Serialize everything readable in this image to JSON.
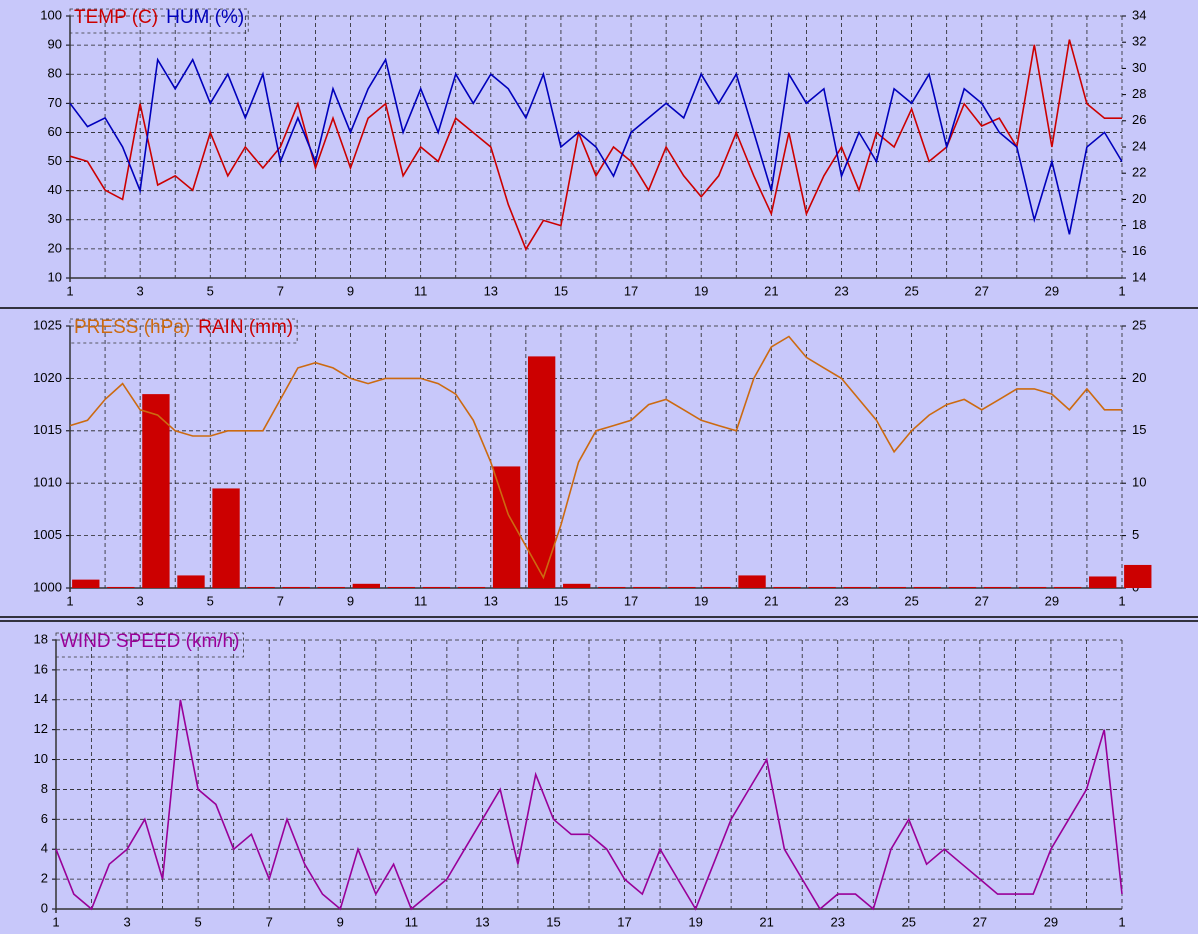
{
  "chart_data": [
    {
      "type": "line",
      "x": [
        1,
        1.5,
        2,
        2.5,
        3,
        3.5,
        4,
        4.5,
        5,
        5.5,
        6,
        6.5,
        7,
        7.5,
        8,
        8.5,
        9,
        9.5,
        10,
        10.5,
        11,
        11.5,
        12,
        12.5,
        13,
        13.5,
        14,
        14.5,
        15,
        15.5,
        16,
        16.5,
        17,
        17.5,
        18,
        18.5,
        19,
        19.5,
        20,
        20.5,
        21,
        21.5,
        22,
        22.5,
        23,
        23.5,
        24,
        24.5,
        25,
        25.5,
        26,
        26.5,
        27,
        27.5,
        28,
        28.5,
        29,
        29.5,
        30,
        30.5,
        31
      ],
      "series": [
        {
          "name": "TEMP (C)",
          "color": "#cc0000",
          "axis": "y2",
          "values": [
            23.3,
            22.9,
            20.7,
            20.0,
            27.3,
            21.1,
            21.8,
            20.7,
            25.1,
            21.8,
            24.0,
            22.4,
            24.0,
            27.3,
            22.4,
            26.2,
            22.4,
            26.2,
            27.3,
            21.8,
            24.0,
            22.9,
            26.2,
            25.1,
            24.0,
            19.6,
            16.2,
            18.4,
            18.0,
            25.1,
            21.8,
            24.0,
            22.9,
            20.7,
            24.0,
            21.8,
            20.2,
            21.8,
            25.1,
            21.8,
            18.9,
            25.1,
            18.9,
            21.8,
            24.0,
            20.7,
            25.1,
            24.0,
            26.9,
            22.9,
            24.0,
            27.3,
            25.6,
            26.2,
            24.0,
            31.8,
            24.0,
            32.2,
            27.3,
            26.2,
            26.2
          ]
        },
        {
          "name": "HUM (%)",
          "color": "#0000bb",
          "axis": "y",
          "values": [
            70,
            62,
            65,
            55,
            40,
            85,
            75,
            85,
            70,
            80,
            65,
            80,
            50,
            65,
            50,
            75,
            60,
            75,
            85,
            60,
            75,
            60,
            80,
            70,
            80,
            75,
            65,
            80,
            55,
            60,
            55,
            45,
            60,
            65,
            70,
            65,
            80,
            70,
            80,
            60,
            40,
            80,
            70,
            75,
            45,
            60,
            50,
            75,
            70,
            80,
            55,
            75,
            70,
            60,
            55,
            30,
            50,
            25,
            55,
            60,
            50
          ]
        }
      ],
      "xlim": [
        1,
        31
      ],
      "xticks": [
        1,
        3,
        5,
        7,
        9,
        11,
        13,
        15,
        17,
        19,
        21,
        23,
        25,
        27,
        29,
        {
          "value": 31,
          "label": "1"
        }
      ],
      "xminorticks": [
        2,
        4,
        6,
        8,
        10,
        12,
        14,
        16,
        18,
        20,
        22,
        24,
        26,
        28,
        30
      ],
      "ylim": [
        10,
        100
      ],
      "yticks": [
        10,
        20,
        30,
        40,
        50,
        60,
        70,
        80,
        90,
        100
      ],
      "y2lim": [
        14,
        34
      ],
      "y2ticks": [
        14,
        16,
        18,
        20,
        22,
        24,
        26,
        28,
        30,
        32,
        34
      ],
      "grid": true
    },
    {
      "type": "bar-line",
      "series": [
        {
          "name": "RAIN (mm)",
          "color": "#cc0000",
          "axis": "y2",
          "kind": "bar",
          "x": [
            1,
            2,
            3,
            4,
            5,
            6,
            7,
            8,
            9,
            10,
            11,
            12,
            13,
            14,
            15,
            16,
            17,
            18,
            19,
            20,
            21,
            22,
            23,
            24,
            25,
            26,
            27,
            28,
            29,
            30,
            31
          ],
          "values": [
            0.8,
            0.1,
            18.5,
            1.2,
            9.5,
            0.1,
            0.1,
            0.1,
            0.4,
            0.1,
            0.1,
            0.1,
            11.6,
            22.1,
            0.4,
            0.1,
            0.1,
            0.1,
            0.1,
            1.2,
            0.1,
            0.1,
            0.1,
            0.1,
            0.1,
            0.1,
            0.1,
            0.1,
            0.1,
            1.1,
            2.2
          ]
        },
        {
          "name": "PRESS (hPa)",
          "color": "#cc6a10",
          "axis": "y",
          "kind": "line",
          "x": [
            1,
            1.5,
            2,
            2.5,
            3,
            3.5,
            4,
            4.5,
            5,
            5.5,
            6,
            6.5,
            7,
            7.5,
            8,
            8.5,
            9,
            9.5,
            10,
            10.5,
            11,
            11.5,
            12,
            12.5,
            13,
            13.5,
            14,
            14.5,
            15,
            15.5,
            16,
            16.5,
            17,
            17.5,
            18,
            18.5,
            19,
            19.5,
            20,
            20.5,
            21,
            21.5,
            22,
            22.5,
            23,
            23.5,
            24,
            24.5,
            25,
            25.5,
            26,
            26.5,
            27,
            27.5,
            28,
            28.5,
            29,
            29.5,
            30,
            30.5,
            31
          ],
          "values": [
            1015.5,
            1016,
            1018,
            1019.5,
            1017,
            1016.5,
            1015,
            1014.5,
            1014.5,
            1015,
            1015,
            1015,
            1018,
            1021,
            1021.5,
            1021,
            1020,
            1019.5,
            1020,
            1020,
            1020,
            1019.5,
            1018.5,
            1016,
            1012,
            1007,
            1004,
            1001,
            1006,
            1012,
            1015,
            1015.5,
            1016,
            1017.5,
            1018,
            1017,
            1016,
            1015.5,
            1015,
            1020,
            1023,
            1024,
            1022,
            1021,
            1020,
            1018,
            1016,
            1013,
            1015,
            1016.5,
            1017.5,
            1018,
            1017,
            1018,
            1019,
            1019,
            1018.5,
            1017,
            1019,
            1017,
            1017
          ]
        }
      ],
      "legend_order": [
        "PRESS (hPa)",
        "RAIN (mm)"
      ],
      "xlim": [
        1,
        31
      ],
      "xticks": [
        1,
        3,
        5,
        7,
        9,
        11,
        13,
        15,
        17,
        19,
        21,
        23,
        25,
        27,
        29,
        {
          "value": 31,
          "label": "1"
        }
      ],
      "xminorticks": [
        2,
        4,
        6,
        8,
        10,
        12,
        14,
        16,
        18,
        20,
        22,
        24,
        26,
        28,
        30
      ],
      "ylim": [
        1000,
        1025
      ],
      "yticks": [
        1000,
        1005,
        1010,
        1015,
        1020,
        1025
      ],
      "y2lim": [
        0,
        25
      ],
      "y2ticks": [
        0,
        5,
        10,
        15,
        20,
        25
      ],
      "grid": true
    },
    {
      "type": "line",
      "x": [
        1,
        1.5,
        2,
        2.5,
        3,
        3.5,
        4,
        4.5,
        5,
        5.5,
        6,
        6.5,
        7,
        7.5,
        8,
        8.5,
        9,
        9.5,
        10,
        10.5,
        11,
        11.5,
        12,
        12.5,
        13,
        13.5,
        14,
        14.5,
        15,
        15.5,
        16,
        16.5,
        17,
        17.5,
        18,
        18.5,
        19,
        19.5,
        20,
        20.5,
        21,
        21.5,
        22,
        22.5,
        23,
        23.5,
        24,
        24.5,
        25,
        25.5,
        26,
        26.5,
        27,
        27.5,
        28,
        28.5,
        29,
        29.5,
        30,
        30.5,
        31
      ],
      "series": [
        {
          "name": "WIND SPEED (km/h)",
          "color": "#990099",
          "axis": "y",
          "values": [
            4,
            1,
            0,
            3,
            4,
            6,
            2,
            14,
            8,
            7,
            4,
            5,
            2,
            6,
            3,
            1,
            0,
            4,
            1,
            3,
            0,
            1,
            2,
            4,
            6,
            8,
            3,
            9,
            6,
            5,
            5,
            4,
            2,
            1,
            4,
            2,
            0,
            3,
            6,
            8,
            10,
            4,
            2,
            0,
            1,
            1,
            0,
            4,
            6,
            3,
            4,
            3,
            2,
            1,
            1,
            1,
            4,
            6,
            8,
            12,
            1
          ]
        }
      ],
      "xlim": [
        1,
        31
      ],
      "xticks": [
        1,
        3,
        5,
        7,
        9,
        11,
        13,
        15,
        17,
        19,
        21,
        23,
        25,
        27,
        29,
        {
          "value": 31,
          "label": "1"
        }
      ],
      "xminorticks": [
        2,
        4,
        6,
        8,
        10,
        12,
        14,
        16,
        18,
        20,
        22,
        24,
        26,
        28,
        30
      ],
      "ylim": [
        0,
        18
      ],
      "yticks": [
        0,
        2,
        4,
        6,
        8,
        10,
        12,
        14,
        16,
        18
      ],
      "grid": true
    }
  ]
}
